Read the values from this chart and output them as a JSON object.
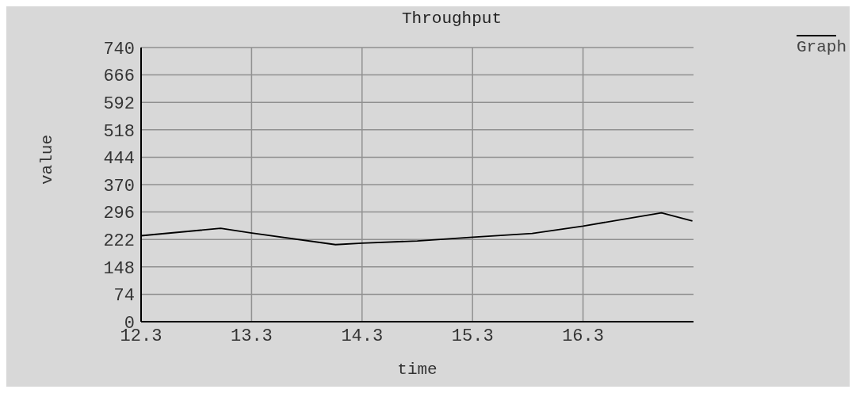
{
  "chart_data": {
    "type": "line",
    "title": "Throughput",
    "xlabel": "time",
    "ylabel": "value",
    "xlim": [
      12.3,
      17.3
    ],
    "xticks": [
      12.3,
      13.3,
      14.3,
      15.3,
      16.3
    ],
    "ylim": [
      0,
      740
    ],
    "yticks": [
      0,
      74,
      148,
      222,
      296,
      370,
      444,
      518,
      592,
      666,
      740
    ],
    "grid": true,
    "legend": "top right",
    "marker": "none",
    "line_style": "solid",
    "series": [
      {
        "name": "Graph",
        "color": "#000000",
        "x": [
          12.3,
          13.02,
          13.29,
          14.06,
          14.3,
          14.8,
          15.3,
          15.84,
          16.3,
          17.01,
          17.29
        ],
        "values": [
          232,
          252,
          240,
          208,
          212,
          218,
          228,
          238,
          258,
          294,
          272
        ]
      }
    ]
  }
}
